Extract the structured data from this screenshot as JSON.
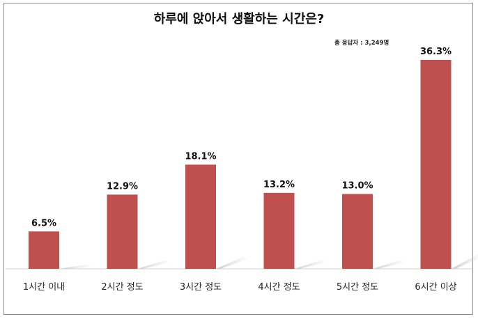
{
  "chart_data": {
    "type": "bar",
    "title": "하루에 앉아서 생활하는 시간은?",
    "note": "총 응답자 : 3,249명",
    "categories": [
      "1시간 이내",
      "2시간 정도",
      "3시간 정도",
      "4시간 정도",
      "5시간 정도",
      "6시간 이상"
    ],
    "values": [
      6.5,
      12.9,
      18.1,
      13.2,
      13.0,
      36.3
    ],
    "value_labels": [
      "6.5%",
      "12.9%",
      "18.1%",
      "13.2%",
      "13.0%",
      "36.3%"
    ],
    "ylim": [
      0,
      40
    ],
    "bar_color": "#c0504d",
    "grid": false,
    "xlabel": "",
    "ylabel": ""
  }
}
